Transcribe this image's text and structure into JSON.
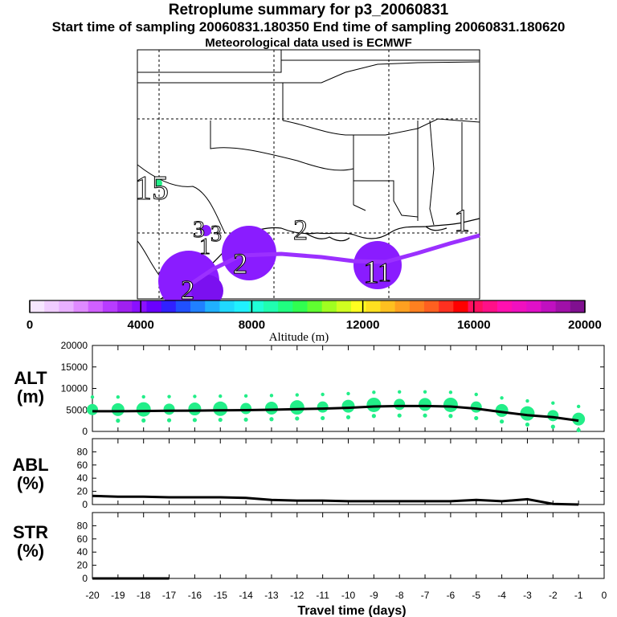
{
  "header": {
    "title": "Retroplume summary for p3_20060831",
    "sampling": "Start time of sampling 20060831.180350     End time of sampling 20060831.180620",
    "met": "Meteorological data used is ECMWF"
  },
  "map": {
    "day_labels": [
      "1",
      "1",
      "2",
      "2",
      "3",
      "15",
      "1",
      "1",
      "2",
      "3"
    ],
    "plume_color": "#9b30ff",
    "cloud_color": "#8a1cff",
    "deep_cloud_color": "#7b10f0",
    "point_color": "#22ee88"
  },
  "colorbar": {
    "label": "Altitude (m)",
    "ticks": [
      "0",
      "4000",
      "8000",
      "12000",
      "16000",
      "20000"
    ],
    "colors": [
      "#f7e6ff",
      "#f0ccff",
      "#e8b0ff",
      "#df8aff",
      "#d060ff",
      "#b83cff",
      "#a020f0",
      "#8a10ff",
      "#6a00ff",
      "#3020ff",
      "#2050ff",
      "#2080ff",
      "#20b0ff",
      "#20d8ff",
      "#20f0ff",
      "#20ffd8",
      "#20ffb0",
      "#20ff80",
      "#30ff50",
      "#60ff30",
      "#a0ff20",
      "#d0ff20",
      "#ffff20",
      "#ffe020",
      "#ffc020",
      "#ffa020",
      "#ff8020",
      "#ff6020",
      "#ff3020",
      "#ff0000",
      "#ff1060",
      "#ff1088",
      "#ff10b0",
      "#f010c0",
      "#e010c8",
      "#c010c0",
      "#a010a8",
      "#801090"
    ]
  },
  "chart_data": [
    {
      "type": "line",
      "panel": "ALT",
      "ylabel": "ALT\n(m)",
      "ylim": [
        0,
        20000
      ],
      "yticks": [
        "0",
        "5000",
        "10000",
        "15000",
        "20000"
      ],
      "x": [
        -20,
        -19,
        -18,
        -17,
        -16,
        -15,
        -14,
        -13,
        -12,
        -11,
        -10,
        -9,
        -8,
        -7,
        -6,
        -5,
        -4,
        -3,
        -2,
        -1
      ],
      "values": [
        4700,
        4700,
        4750,
        4800,
        4850,
        4900,
        4950,
        5050,
        5200,
        5300,
        5500,
        5800,
        5900,
        5900,
        5800,
        5300,
        4500,
        3800,
        3300,
        2500
      ],
      "scatter_color": "#22ee88"
    },
    {
      "type": "line",
      "panel": "ABL",
      "ylabel": "ABL\n(%)",
      "ylim": [
        0,
        100
      ],
      "yticks": [
        "0",
        "20",
        "40",
        "60",
        "80"
      ],
      "x": [
        -20,
        -19,
        -18,
        -17,
        -16,
        -15,
        -14,
        -13,
        -12,
        -11,
        -10,
        -9,
        -8,
        -7,
        -6,
        -5,
        -4,
        -3,
        -2,
        -1
      ],
      "values": [
        13,
        12,
        12,
        11,
        11,
        11,
        10,
        7,
        6,
        6,
        5,
        5,
        5,
        5,
        5,
        7,
        5,
        8,
        1,
        0
      ]
    },
    {
      "type": "line",
      "panel": "STR",
      "ylabel": "STR\n(%)",
      "ylim": [
        0,
        100
      ],
      "yticks": [
        "0",
        "20",
        "40",
        "60",
        "80"
      ],
      "x": [
        -20,
        -19,
        -18,
        -17,
        -16,
        -15,
        -14,
        -13,
        -12,
        -11,
        -10,
        -9,
        -8,
        -7,
        -6,
        -5,
        -4,
        -3,
        -2,
        -1
      ],
      "values": [
        0,
        0,
        0,
        0,
        0,
        0,
        0,
        0,
        0,
        0,
        0,
        0,
        0,
        0,
        0,
        0,
        0,
        0,
        0,
        0
      ]
    }
  ],
  "xaxis": {
    "label": "Travel time (days)",
    "ticks": [
      "-20",
      "-19",
      "-18",
      "-17",
      "-16",
      "-15",
      "-14",
      "-13",
      "-12",
      "-11",
      "-10",
      "-9",
      "-8",
      "-7",
      "-6",
      "-5",
      "-4",
      "-3",
      "-2",
      "-1",
      "0"
    ]
  }
}
